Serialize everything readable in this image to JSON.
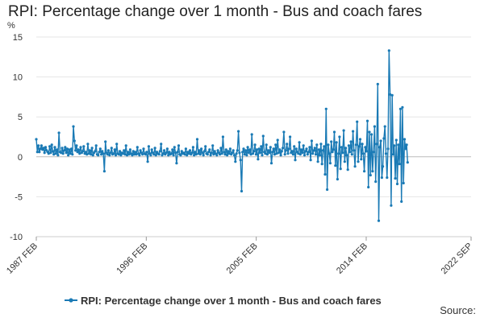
{
  "chart_data": {
    "type": "line",
    "title": "RPI: Percentage change over 1 month - Bus and coach fares",
    "y_unit": "%",
    "ylim": [
      -10,
      15
    ],
    "y_ticks": [
      15,
      10,
      5,
      0,
      -5,
      -10
    ],
    "x_ticks": [
      "1987 FEB",
      "1996 FEB",
      "2005 FEB",
      "2014 FEB",
      "2022 SEP"
    ],
    "x_range": [
      "1987-02",
      "2022-09"
    ],
    "grid": true,
    "legend_position": "bottom",
    "color": "#1a7ab5",
    "series": [
      {
        "name": "RPI: Percentage change over 1 month - Bus and coach fares",
        "start": "1987-02",
        "values": [
          2.2,
          0.6,
          1.4,
          0.6,
          1.0,
          1.4,
          0.9,
          1.1,
          0.5,
          1.2,
          0.8,
          0.6,
          0.4,
          1.3,
          0.5,
          1.5,
          0.7,
          0.3,
          1.2,
          0.4,
          0.9,
          0.2,
          3.0,
          0.6,
          0.5,
          1.1,
          0.4,
          0.8,
          1.2,
          0.5,
          1.0,
          0.2,
          0.9,
          0.4,
          1.0,
          0.3,
          3.8,
          2.0,
          0.8,
          1.4,
          0.6,
          0.9,
          0.4,
          1.2,
          0.5,
          0.7,
          1.3,
          0.4,
          0.6,
          0.3,
          1.6,
          0.4,
          0.8,
          0.3,
          1.1,
          0.2,
          0.5,
          0.7,
          1.4,
          0.3,
          0.2,
          0.6,
          1.0,
          0.3,
          0.7,
          0.4,
          -1.8,
          1.9,
          0.5,
          0.3,
          0.8,
          0.2,
          0.5,
          1.1,
          0.3,
          0.4,
          0.9,
          0.2,
          1.6,
          0.4,
          0.3,
          0.7,
          0.2,
          0.5,
          0.4,
          0.8,
          0.3,
          1.4,
          0.2,
          0.6,
          0.3,
          0.9,
          0.4,
          0.2,
          0.7,
          0.3,
          0.6,
          0.3,
          1.2,
          0.4,
          0.2,
          0.8,
          0.5,
          0.3,
          1.0,
          0.4,
          0.3,
          0.6,
          -0.6,
          1.3,
          0.4,
          0.2,
          0.9,
          0.5,
          0.3,
          1.1,
          0.2,
          0.6,
          0.4,
          0.3,
          0.7,
          1.6,
          0.2,
          0.4,
          0.8,
          0.3,
          0.5,
          1.0,
          0.2,
          0.6,
          0.3,
          0.4,
          0.9,
          0.2,
          1.2,
          0.5,
          -0.8,
          0.6,
          1.4,
          0.3,
          0.2,
          0.7,
          0.4,
          0.5,
          0.3,
          1.0,
          0.2,
          0.6,
          0.4,
          0.8,
          0.3,
          0.5,
          1.2,
          0.2,
          0.6,
          0.3,
          2.2,
          0.4,
          0.8,
          0.3,
          1.0,
          0.5,
          0.2,
          0.7,
          1.3,
          0.4,
          0.3,
          0.6,
          0.9,
          0.2,
          0.5,
          1.4,
          0.3,
          0.7,
          0.4,
          0.2,
          0.8,
          0.5,
          0.3,
          1.1,
          0.4,
          2.5,
          0.6,
          0.3,
          0.9,
          0.2,
          0.7,
          0.4,
          1.0,
          0.3,
          0.5,
          0.8,
          0.2,
          -0.6,
          0.4,
          0.8,
          3.2,
          0.5,
          -0.4,
          -4.3,
          0.6,
          1.0,
          0.3,
          0.8,
          0.2,
          1.2,
          0.5,
          0.9,
          0.3,
          2.8,
          0.4,
          0.7,
          1.5,
          0.3,
          0.9,
          -0.3,
          1.0,
          0.5,
          1.3,
          0.2,
          2.6,
          0.6,
          0.4,
          1.5,
          0.3,
          0.8,
          0.5,
          1.2,
          -0.8,
          0.6,
          1.0,
          0.3,
          1.5,
          0.4,
          2.1,
          0.5,
          0.9,
          0.2,
          0.7,
          1.1,
          3.1,
          0.3,
          0.8,
          1.6,
          0.4,
          1.0,
          2.5,
          0.5,
          0.7,
          0.3,
          1.3,
          -0.4,
          1.0,
          0.6,
          0.4,
          1.8,
          0.3,
          0.9,
          0.5,
          1.4,
          0.2,
          0.7,
          1.0,
          0.3,
          0.6,
          1.2,
          -0.4,
          2.0,
          0.4,
          0.8,
          1.1,
          0.3,
          1.5,
          -0.6,
          0.9,
          0.2,
          1.6,
          -0.9,
          0.8,
          1.3,
          -2.2,
          6.0,
          -4.1,
          1.5,
          0.4,
          -0.8,
          1.9,
          0.6,
          0.9,
          3.1,
          -1.1,
          1.8,
          -2.8,
          0.4,
          2.5,
          -1.5,
          1.2,
          0.5,
          3.3,
          -0.6,
          1.1,
          0.2,
          -1.6,
          1.4,
          0.6,
          1.9,
          0.3,
          3.2,
          0.8,
          -1.2,
          1.5,
          4.4,
          -0.6,
          1.3,
          2.2,
          -0.3,
          1.6,
          0.4,
          -1.8,
          1.2,
          0.7,
          4.5,
          -3.8,
          3.1,
          -2.3,
          2.8,
          -1.8,
          0.6,
          3.8,
          -3.1,
          1.6,
          9.1,
          -8.0,
          1.2,
          2.0,
          -2.6,
          -1.2,
          2.3,
          3.8,
          0.4,
          -2.6,
          1.0,
          13.3,
          7.8,
          -6.1,
          7.7,
          0.3,
          1.4,
          -2.7,
          2.1,
          -3.4,
          1.5,
          -0.9,
          6.0,
          -5.6,
          6.2,
          -3.3,
          2.2,
          1.0,
          1.5,
          -0.7
        ]
      }
    ]
  },
  "source_label": "Source:"
}
